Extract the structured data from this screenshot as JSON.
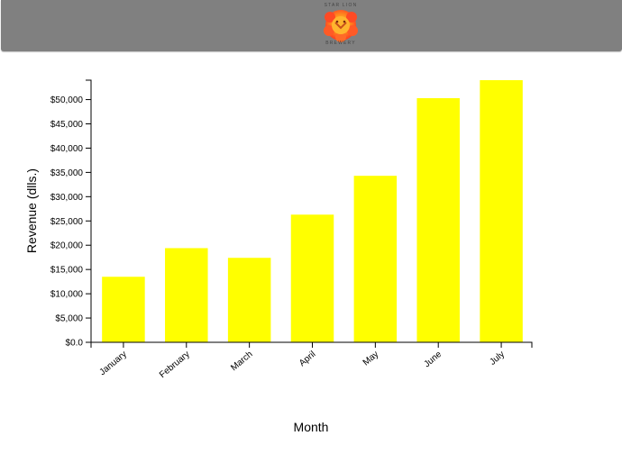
{
  "header": {
    "logo_top_text": "STAR LION",
    "logo_bottom_text": "BREWERY",
    "background": "#808080"
  },
  "chart_data": {
    "type": "bar",
    "categories": [
      "January",
      "February",
      "March",
      "April",
      "May",
      "June",
      "July"
    ],
    "values": [
      13500,
      19400,
      17400,
      26300,
      34300,
      50300,
      54000
    ],
    "title": "",
    "xlabel": "Month",
    "ylabel": "Revenue (dlls.)",
    "ylim": [
      0,
      54000
    ],
    "yticks": [
      0,
      5000,
      10000,
      15000,
      20000,
      25000,
      30000,
      35000,
      40000,
      45000,
      50000
    ],
    "ytick_labels": [
      "$0.0",
      "$5,000",
      "$10,000",
      "$15,000",
      "$20,000",
      "$25,000",
      "$30,000",
      "$35,000",
      "$40,000",
      "$45,000",
      "$50,000"
    ],
    "bar_color": "#ffff00",
    "grid": false,
    "legend": "none"
  }
}
